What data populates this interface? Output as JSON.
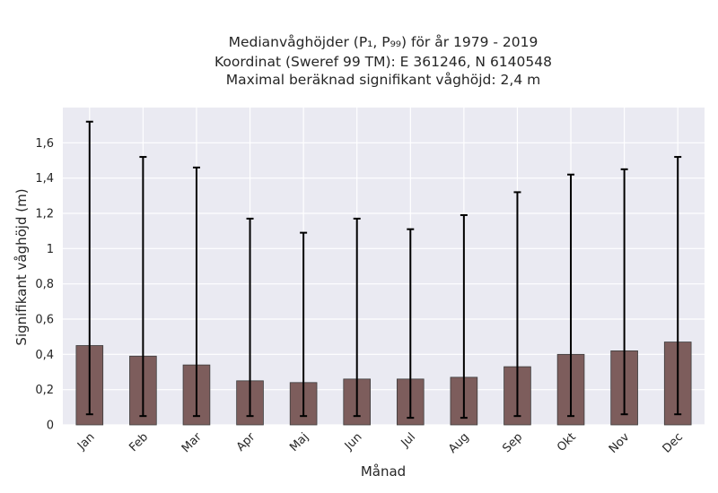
{
  "chart_data": {
    "type": "bar",
    "title_lines": [
      "Medianvåghöjder (P₁, P₉₉) för år 1979 - 2019",
      "Koordinat (Sweref 99 TM): E 361246, N 6140548",
      "Maximal beräknad signifikant våghöjd: 2,4 m"
    ],
    "xlabel": "Månad",
    "ylabel": "Signifikant våghöjd (m)",
    "categories": [
      "Jan",
      "Feb",
      "Mar",
      "Apr",
      "Maj",
      "Jun",
      "Jul",
      "Aug",
      "Sep",
      "Okt",
      "Nov",
      "Dec"
    ],
    "values": [
      0.45,
      0.39,
      0.34,
      0.25,
      0.24,
      0.26,
      0.26,
      0.27,
      0.33,
      0.4,
      0.42,
      0.47
    ],
    "p1": [
      0.06,
      0.05,
      0.05,
      0.05,
      0.05,
      0.05,
      0.04,
      0.04,
      0.05,
      0.05,
      0.06,
      0.06
    ],
    "p99": [
      1.72,
      1.52,
      1.46,
      1.17,
      1.09,
      1.17,
      1.11,
      1.19,
      1.32,
      1.42,
      1.45,
      1.52
    ],
    "ylim": [
      0,
      1.8
    ],
    "yticks": [
      0,
      0.2,
      0.4,
      0.6,
      0.8,
      1.0,
      1.2,
      1.4,
      1.6
    ],
    "ytick_labels": [
      "0",
      "0,2",
      "0,4",
      "0,6",
      "0,8",
      "1",
      "1,2",
      "1,4",
      "1,6"
    ],
    "grid": true,
    "colors": {
      "bar": "#7d5d5c",
      "bar_edge": "#3c3c3c",
      "plot_background": "#eaeaf2",
      "grid": "#ffffff",
      "errorbar": "#000000"
    }
  }
}
